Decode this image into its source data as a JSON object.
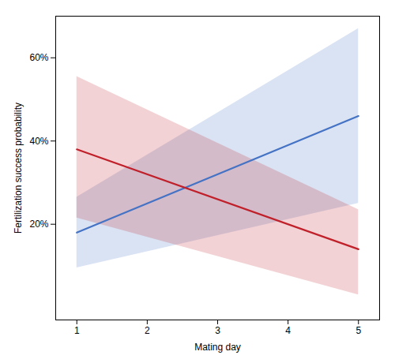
{
  "chart_data": {
    "type": "line",
    "xlabel": "Mating day",
    "ylabel": "Fertilization success probability",
    "x": [
      1,
      5
    ],
    "series": [
      {
        "color": "#4472C4",
        "values": [
          0.18,
          0.46
        ],
        "ci_upper": [
          0.265,
          0.67
        ],
        "ci_lower": [
          0.095,
          0.25
        ]
      },
      {
        "color": "#C0202A",
        "values": [
          0.38,
          0.14
        ],
        "ci_upper": [
          0.555,
          0.235
        ],
        "ci_lower": [
          0.215,
          0.03
        ]
      }
    ],
    "xlim": [
      0.7,
      5.3
    ],
    "ylim": [
      -0.03,
      0.7
    ],
    "xticks": [
      1,
      2,
      3,
      4,
      5
    ],
    "yticks": [
      {
        "value": 0.2,
        "label": "20%"
      },
      {
        "value": 0.4,
        "label": "40%"
      },
      {
        "value": 0.6,
        "label": "60%"
      }
    ],
    "grid": false
  }
}
